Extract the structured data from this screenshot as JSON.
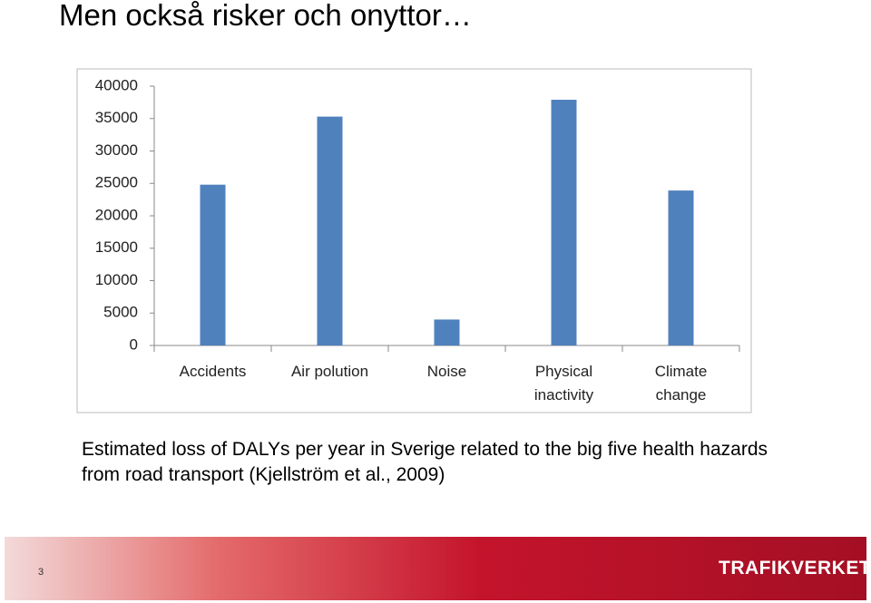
{
  "slide": {
    "title": "Men också risker och onyttor…",
    "caption": "Estimated loss of DALYs per year in Sverige related to the big five health hazards from road transport (Kjellström et al., 2009)",
    "page_number": "3",
    "logo": "TRAFIKVERKET"
  },
  "chart_data": {
    "type": "bar",
    "categories": [
      "Accidents",
      "Air polution",
      "Noise",
      "Physical inactivity",
      "Climate change"
    ],
    "values": [
      24800,
      35300,
      4000,
      37900,
      23900
    ],
    "color": "#4f81bd",
    "ylim": [
      0,
      40000
    ],
    "yticks": [
      0,
      5000,
      10000,
      15000,
      20000,
      25000,
      30000,
      35000,
      40000
    ],
    "grid": false
  }
}
